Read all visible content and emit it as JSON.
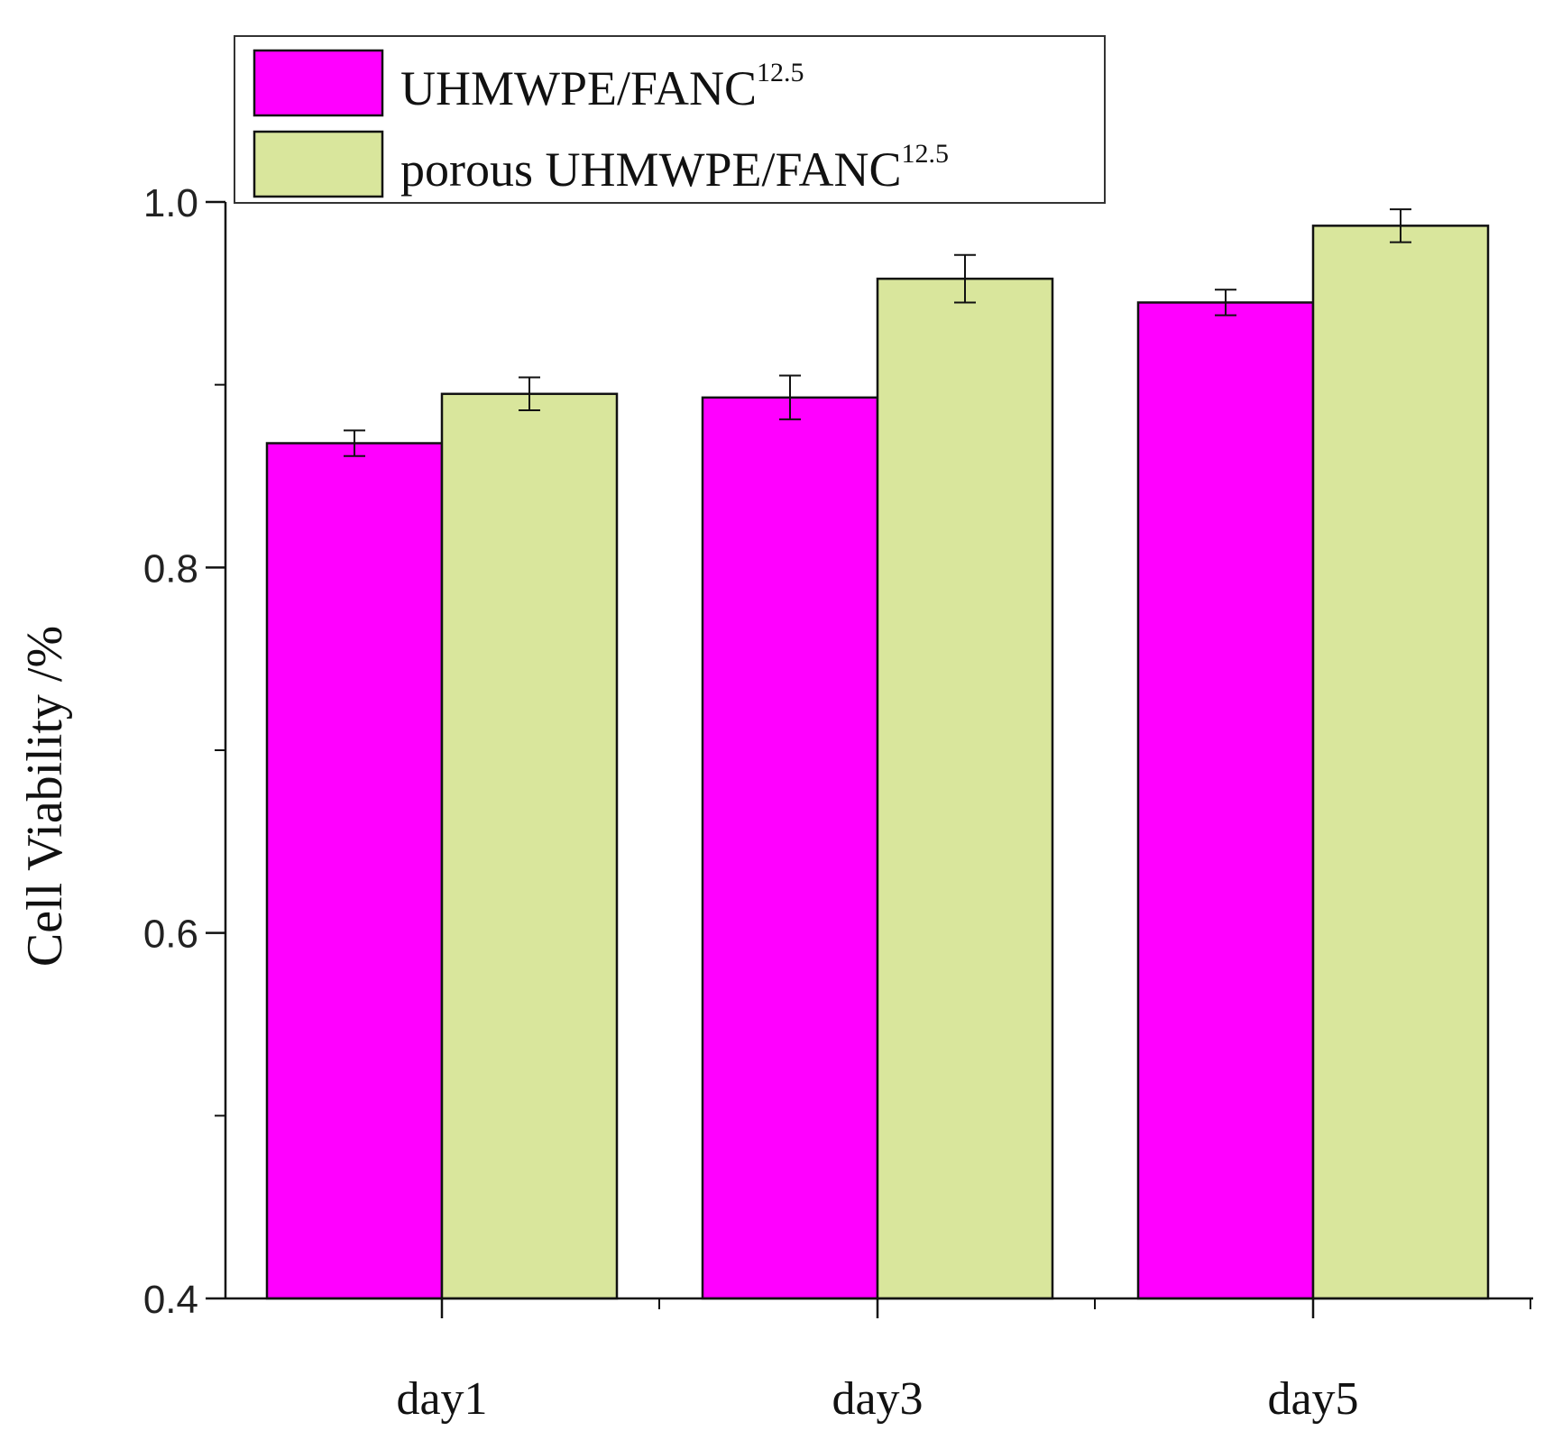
{
  "chart_data": {
    "type": "bar",
    "categories": [
      "day1",
      "day3",
      "day5"
    ],
    "series": [
      {
        "name": "UHMWPE/FANC",
        "name_sup": "12.5",
        "color": "#ff00ff",
        "values": [
          0.868,
          0.893,
          0.945
        ],
        "errors": [
          0.007,
          0.012,
          0.007
        ]
      },
      {
        "name": "porous UHMWPE/FANC",
        "name_sup": "12.5",
        "color": "#d9e69c",
        "values": [
          0.895,
          0.958,
          0.987
        ],
        "errors": [
          0.009,
          0.013,
          0.009
        ]
      }
    ],
    "ylabel": "Cell Viability /%",
    "ylim": [
      0.4,
      1.0
    ],
    "yticks": [
      0.4,
      0.6,
      0.8,
      1.0
    ],
    "ytick_labels": [
      "0.4",
      "0.6",
      "0.8",
      "1.0"
    ],
    "legend_position": "top-left",
    "grid": false
  }
}
